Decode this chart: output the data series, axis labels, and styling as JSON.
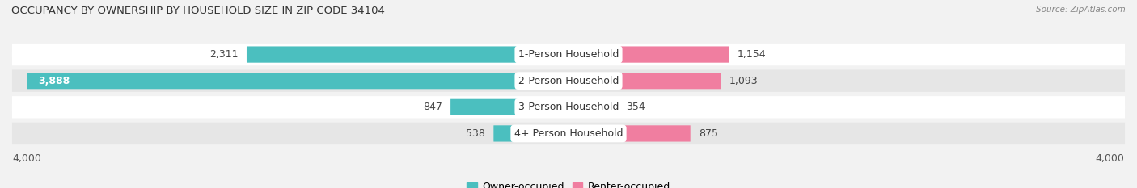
{
  "title": "OCCUPANCY BY OWNERSHIP BY HOUSEHOLD SIZE IN ZIP CODE 34104",
  "source": "Source: ZipAtlas.com",
  "categories": [
    "1-Person Household",
    "2-Person Household",
    "3-Person Household",
    "4+ Person Household"
  ],
  "owner_values": [
    2311,
    3888,
    847,
    538
  ],
  "renter_values": [
    1154,
    1093,
    354,
    875
  ],
  "owner_color": "#4bbfbf",
  "owner_color_dark": "#3aacad",
  "renter_color_1": "#f07ea0",
  "renter_color_2": "#f5b8cc",
  "axis_max": 4000,
  "legend_owner": "Owner-occupied",
  "legend_renter": "Renter-occupied",
  "bar_height": 0.62,
  "bg_color": "#f2f2f2",
  "row_colors": [
    "#ffffff",
    "#e6e6e6",
    "#ffffff",
    "#e6e6e6"
  ],
  "label_fontsize": 9,
  "title_fontsize": 9.5,
  "category_fontsize": 9
}
